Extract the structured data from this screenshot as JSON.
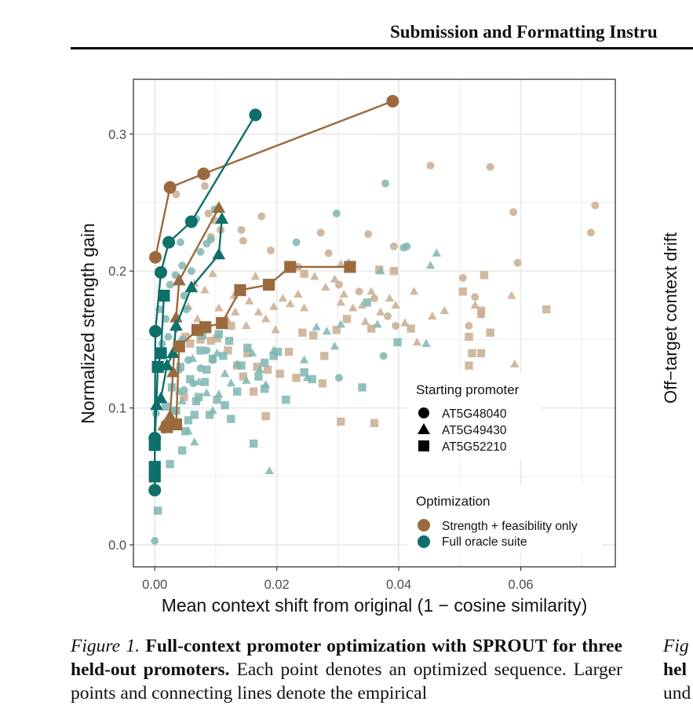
{
  "header": {
    "title": "Submission and Formatting Instru"
  },
  "right_panel": {
    "ylabel": "Off−target context drift",
    "caption_lines": [
      "Fig",
      "hel",
      "und"
    ]
  },
  "caption": {
    "fig_label": "Figure 1.",
    "bold_text": "Full-context promoter optimization with SPROUT for three held-out promoters.",
    "text": "Each point denotes an optimized sequence. Larger points and connecting lines denote the empirical"
  },
  "colors": {
    "strength": "#9a6a3e",
    "full": "#0f6f6a",
    "strength_light": "#c9ad90",
    "full_light": "#7eb6b2",
    "grid": "#ebebeb"
  },
  "chart_data": {
    "type": "scatter",
    "xlabel": "Mean context shift from original (1 − cosine similarity)",
    "ylabel": "Normalized strength gain",
    "xlim": [
      -0.0035,
      0.0755
    ],
    "ylim": [
      -0.016,
      0.34
    ],
    "xticks": [
      0.0,
      0.02,
      0.04,
      0.06
    ],
    "xtick_labels": [
      "0.00",
      "0.02",
      "0.04",
      "0.06"
    ],
    "yticks": [
      0.0,
      0.1,
      0.2,
      0.3
    ],
    "ytick_labels": [
      "0.0",
      "0.1",
      "0.2",
      "0.3"
    ],
    "grid": true,
    "legend_shape": {
      "title": "Starting promoter",
      "items": [
        {
          "label": "AT5G48040",
          "shape": "circle"
        },
        {
          "label": "AT5G49430",
          "shape": "triangle"
        },
        {
          "label": "AT5G52210",
          "shape": "square"
        }
      ]
    },
    "legend_color": {
      "title": "Optimization",
      "items": [
        {
          "label": "Strength + feasibility only",
          "color": "#9a6a3e"
        },
        {
          "label": "Full oracle suite",
          "color": "#0f6f6a"
        }
      ]
    },
    "frontier_series": [
      {
        "optimization": "strength",
        "shape": "circle",
        "points": [
          [
            0.0001,
            0.21
          ],
          [
            0.0025,
            0.261
          ],
          [
            0.008,
            0.271
          ],
          [
            0.039,
            0.324
          ]
        ]
      },
      {
        "optimization": "full",
        "shape": "circle",
        "points": [
          [
            0.0,
            0.04
          ],
          [
            0.0,
            0.078
          ],
          [
            0.0001,
            0.156
          ],
          [
            0.001,
            0.199
          ],
          [
            0.0023,
            0.221
          ],
          [
            0.006,
            0.236
          ],
          [
            0.0165,
            0.314
          ]
        ]
      },
      {
        "optimization": "strength",
        "shape": "triangle",
        "points": [
          [
            0.0015,
            0.087
          ],
          [
            0.0025,
            0.094
          ],
          [
            0.003,
            0.126
          ],
          [
            0.0035,
            0.166
          ],
          [
            0.004,
            0.193
          ],
          [
            0.0105,
            0.246
          ]
        ]
      },
      {
        "optimization": "full",
        "shape": "triangle",
        "points": [
          [
            0.0003,
            0.102
          ],
          [
            0.001,
            0.107
          ],
          [
            0.002,
            0.131
          ],
          [
            0.003,
            0.14
          ],
          [
            0.0035,
            0.16
          ],
          [
            0.006,
            0.188
          ],
          [
            0.0105,
            0.212
          ],
          [
            0.011,
            0.238
          ]
        ]
      },
      {
        "optimization": "strength",
        "shape": "square",
        "points": [
          [
            0.002,
            0.086
          ],
          [
            0.0035,
            0.088
          ],
          [
            0.004,
            0.145
          ],
          [
            0.007,
            0.157
          ],
          [
            0.0083,
            0.159
          ],
          [
            0.011,
            0.162
          ],
          [
            0.014,
            0.186
          ],
          [
            0.0187,
            0.19
          ],
          [
            0.0222,
            0.203
          ],
          [
            0.032,
            0.203
          ]
        ]
      },
      {
        "optimization": "full",
        "shape": "square",
        "points": [
          [
            0.0,
            0.05
          ],
          [
            0.0,
            0.057
          ],
          [
            0.0,
            0.073
          ],
          [
            0.0005,
            0.13
          ],
          [
            0.001,
            0.14
          ],
          [
            0.0015,
            0.182
          ]
        ]
      }
    ],
    "background_points": {
      "strength": {
        "circle": [
          [
            0.0035,
            0.256
          ],
          [
            0.0082,
            0.262
          ],
          [
            0.0085,
            0.27
          ],
          [
            0.0088,
            0.242
          ],
          [
            0.0092,
            0.225
          ],
          [
            0.0098,
            0.237
          ],
          [
            0.0108,
            0.23
          ],
          [
            0.0142,
            0.23
          ],
          [
            0.0145,
            0.222
          ],
          [
            0.0175,
            0.24
          ],
          [
            0.0272,
            0.228
          ],
          [
            0.0285,
            0.213
          ],
          [
            0.035,
            0.227
          ],
          [
            0.0392,
            0.218
          ],
          [
            0.0452,
            0.277
          ],
          [
            0.055,
            0.276
          ],
          [
            0.0588,
            0.243
          ],
          [
            0.0715,
            0.228
          ],
          [
            0.0722,
            0.248
          ],
          [
            0.0595,
            0.206
          ],
          [
            0.0302,
            0.19
          ],
          [
            0.0335,
            0.185
          ],
          [
            0.0382,
            0.167
          ],
          [
            0.0395,
            0.16
          ],
          [
            0.0515,
            0.16
          ],
          [
            0.0505,
            0.195
          ],
          [
            0.0525,
            0.181
          ],
          [
            0.0535,
            0.169
          ],
          [
            0.019,
            0.215
          ],
          [
            0.0235,
            0.203
          ],
          [
            0.036,
            0.18
          ]
        ],
        "triangle": [
          [
            0.0065,
            0.191
          ],
          [
            0.0082,
            0.186
          ],
          [
            0.0105,
            0.173
          ],
          [
            0.013,
            0.182
          ],
          [
            0.0132,
            0.17
          ],
          [
            0.0155,
            0.178
          ],
          [
            0.0165,
            0.196
          ],
          [
            0.017,
            0.17
          ],
          [
            0.0182,
            0.165
          ],
          [
            0.0195,
            0.174
          ],
          [
            0.021,
            0.18
          ],
          [
            0.0222,
            0.176
          ],
          [
            0.0235,
            0.183
          ],
          [
            0.0245,
            0.173
          ],
          [
            0.0262,
            0.196
          ],
          [
            0.028,
            0.188
          ],
          [
            0.0295,
            0.194
          ],
          [
            0.0305,
            0.205
          ],
          [
            0.031,
            0.183
          ],
          [
            0.0325,
            0.173
          ],
          [
            0.034,
            0.175
          ],
          [
            0.0345,
            0.163
          ],
          [
            0.0355,
            0.185
          ],
          [
            0.037,
            0.17
          ],
          [
            0.0385,
            0.18
          ],
          [
            0.0395,
            0.175
          ],
          [
            0.041,
            0.162
          ],
          [
            0.0425,
            0.185
          ],
          [
            0.043,
            0.148
          ],
          [
            0.0455,
            0.167
          ],
          [
            0.0475,
            0.171
          ],
          [
            0.0525,
            0.175
          ],
          [
            0.0535,
            0.168
          ],
          [
            0.0585,
            0.182
          ],
          [
            0.059,
            0.132
          ],
          [
            0.0305,
            0.177
          ],
          [
            0.0095,
            0.198
          ],
          [
            0.0055,
            0.174
          ],
          [
            0.007,
            0.165
          ],
          [
            0.0118,
            0.165
          ],
          [
            0.015,
            0.16
          ],
          [
            0.0198,
            0.157
          ]
        ],
        "square": [
          [
            0.005,
            0.152
          ],
          [
            0.0075,
            0.15
          ],
          [
            0.0102,
            0.151
          ],
          [
            0.012,
            0.142
          ],
          [
            0.0135,
            0.131
          ],
          [
            0.0152,
            0.14
          ],
          [
            0.0168,
            0.13
          ],
          [
            0.0185,
            0.128
          ],
          [
            0.0205,
            0.125
          ],
          [
            0.022,
            0.141
          ],
          [
            0.0242,
            0.155
          ],
          [
            0.026,
            0.153
          ],
          [
            0.0278,
            0.138
          ],
          [
            0.0298,
            0.157
          ],
          [
            0.0315,
            0.165
          ],
          [
            0.0355,
            0.158
          ],
          [
            0.0368,
            0.201
          ],
          [
            0.0392,
            0.2
          ],
          [
            0.042,
            0.158
          ],
          [
            0.0505,
            0.185
          ],
          [
            0.0515,
            0.152
          ],
          [
            0.052,
            0.14
          ],
          [
            0.0535,
            0.171
          ],
          [
            0.0535,
            0.14
          ],
          [
            0.054,
            0.197
          ],
          [
            0.055,
            0.155
          ],
          [
            0.0642,
            0.172
          ],
          [
            0.0515,
            0.131
          ],
          [
            0.036,
            0.089
          ],
          [
            0.0305,
            0.09
          ],
          [
            0.0275,
            0.118
          ],
          [
            0.0232,
            0.122
          ],
          [
            0.0182,
            0.094
          ],
          [
            0.0162,
            0.112
          ],
          [
            0.0145,
            0.123
          ],
          [
            0.0245,
            0.198
          ],
          [
            0.0125,
            0.16
          ],
          [
            0.0092,
            0.149
          ],
          [
            0.0058,
            0.147
          ],
          [
            0.0048,
            0.108
          ]
        ]
      },
      "full": {
        "circle": [
          [
            0.0008,
            0.172
          ],
          [
            0.0018,
            0.165
          ],
          [
            0.0025,
            0.19
          ],
          [
            0.0034,
            0.197
          ],
          [
            0.0042,
            0.221
          ],
          [
            0.0045,
            0.204
          ],
          [
            0.0048,
            0.182
          ],
          [
            0.0052,
            0.172
          ],
          [
            0.006,
            0.2
          ],
          [
            0.0075,
            0.214
          ],
          [
            0.0085,
            0.22
          ],
          [
            0.0092,
            0.223
          ],
          [
            0.0068,
            0.238
          ],
          [
            0.004,
            0.128
          ],
          [
            0.0048,
            0.113
          ],
          [
            0.0032,
            0.098
          ],
          [
            0.0025,
            0.09
          ],
          [
            0.0015,
            0.084
          ],
          [
            0.0002,
            0.096
          ],
          [
            0.0012,
            0.147
          ],
          [
            0.0022,
            0.152
          ],
          [
            0.0035,
            0.158
          ],
          [
            0.0098,
            0.245
          ],
          [
            0.0232,
            0.221
          ],
          [
            0.0298,
            0.242
          ],
          [
            0.0378,
            0.264
          ],
          [
            0.0408,
            0.217
          ],
          [
            0.0413,
            0.218
          ],
          [
            0.0302,
            0.122
          ],
          [
            0.0375,
            0.138
          ],
          [
            0.0,
            0.003
          ],
          [
            0.0045,
            0.15
          ],
          [
            0.0055,
            0.135
          ],
          [
            0.0063,
            0.118
          ],
          [
            0.0075,
            0.129
          ],
          [
            0.0085,
            0.142
          ],
          [
            0.0095,
            0.135
          ]
        ],
        "triangle": [
          [
            0.0055,
            0.083
          ],
          [
            0.0065,
            0.075
          ],
          [
            0.0095,
            0.098
          ],
          [
            0.0105,
            0.11
          ],
          [
            0.0115,
            0.125
          ],
          [
            0.0125,
            0.118
          ],
          [
            0.0135,
            0.132
          ],
          [
            0.015,
            0.12
          ],
          [
            0.016,
            0.14
          ],
          [
            0.0172,
            0.128
          ],
          [
            0.0182,
            0.117
          ],
          [
            0.0188,
            0.054
          ],
          [
            0.0195,
            0.142
          ],
          [
            0.0245,
            0.135
          ],
          [
            0.025,
            0.122
          ],
          [
            0.0282,
            0.156
          ],
          [
            0.0295,
            0.145
          ],
          [
            0.0305,
            0.161
          ],
          [
            0.0365,
            0.161
          ],
          [
            0.037,
            0.2
          ],
          [
            0.0462,
            0.213
          ],
          [
            0.0452,
            0.204
          ],
          [
            0.0445,
            0.147
          ],
          [
            0.0318,
            0.206
          ],
          [
            0.0102,
            0.14
          ],
          [
            0.0085,
            0.111
          ],
          [
            0.0072,
            0.119
          ],
          [
            0.004,
            0.112
          ],
          [
            0.0045,
            0.105
          ],
          [
            0.0265,
            0.159
          ],
          [
            0.0062,
            0.136
          ]
        ],
        "square": [
          [
            0.0005,
            0.025
          ],
          [
            0.0025,
            0.059
          ],
          [
            0.0045,
            0.069
          ],
          [
            0.005,
            0.083
          ],
          [
            0.0055,
            0.091
          ],
          [
            0.0065,
            0.095
          ],
          [
            0.0072,
            0.108
          ],
          [
            0.0082,
            0.119
          ],
          [
            0.009,
            0.095
          ],
          [
            0.0095,
            0.136
          ],
          [
            0.0102,
            0.106
          ],
          [
            0.0112,
            0.138
          ],
          [
            0.0122,
            0.149
          ],
          [
            0.0125,
            0.092
          ],
          [
            0.0135,
            0.112
          ],
          [
            0.0142,
            0.131
          ],
          [
            0.0152,
            0.144
          ],
          [
            0.0162,
            0.074
          ],
          [
            0.017,
            0.123
          ],
          [
            0.018,
            0.133
          ],
          [
            0.0195,
            0.138
          ],
          [
            0.0202,
            0.141
          ],
          [
            0.0215,
            0.106
          ],
          [
            0.0245,
            0.126
          ],
          [
            0.0258,
            0.121
          ],
          [
            0.034,
            0.115
          ],
          [
            0.0348,
            0.177
          ],
          [
            0.0398,
            0.148
          ],
          [
            0.0035,
            0.098
          ],
          [
            0.0042,
            0.13
          ],
          [
            0.0058,
            0.121
          ],
          [
            0.0068,
            0.105
          ],
          [
            0.0075,
            0.142
          ],
          [
            0.0085,
            0.128
          ],
          [
            0.0105,
            0.154
          ],
          [
            0.0115,
            0.102
          ],
          [
            0.018,
            0.114
          ],
          [
            0.0078,
            0.153
          ],
          [
            0.0018,
            0.101
          ],
          [
            0.0028,
            0.115
          ]
        ]
      }
    }
  }
}
